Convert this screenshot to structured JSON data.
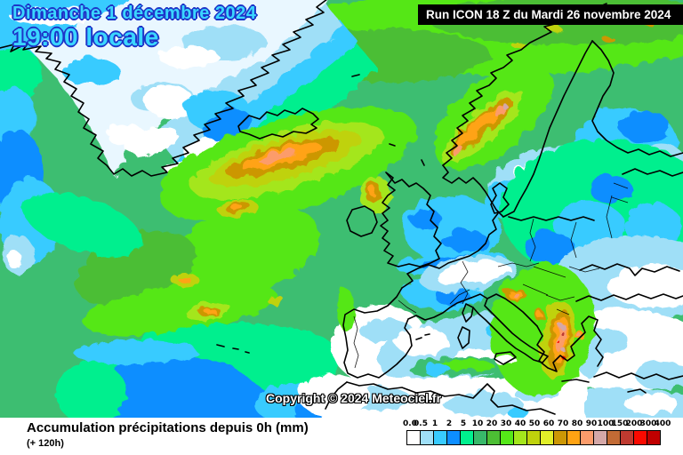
{
  "header": {
    "date": "Dimanche 1 décembre 2024",
    "time": "19:00 locale",
    "run": "Run ICON 18 Z du Mardi 26 novembre 2024"
  },
  "map": {
    "copyright": "Copyright © 2024 Meteociel.fr",
    "region": "Europe / North Atlantic"
  },
  "legend": {
    "title": "Accumulation précipitations depuis 0h (mm)",
    "subtitle": "(+ 120h)",
    "unit": "mm",
    "scale": [
      {
        "value": "0.0",
        "color": "#FFFFFF"
      },
      {
        "value": "0.5",
        "color": "#9FDFF7"
      },
      {
        "value": "1",
        "color": "#38CBFF"
      },
      {
        "value": "2",
        "color": "#0D8EFF"
      },
      {
        "value": "5",
        "color": "#00EF8E"
      },
      {
        "value": "10",
        "color": "#38B96A"
      },
      {
        "value": "20",
        "color": "#4CBE34"
      },
      {
        "value": "30",
        "color": "#55E718"
      },
      {
        "value": "40",
        "color": "#A4E61C"
      },
      {
        "value": "50",
        "color": "#BFD20C"
      },
      {
        "value": "60",
        "color": "#E1EF29"
      },
      {
        "value": "70",
        "color": "#CC9705"
      },
      {
        "value": "80",
        "color": "#FFA313"
      },
      {
        "value": "90",
        "color": "#FC9C6B"
      },
      {
        "value": "100",
        "color": "#D4A8A8"
      },
      {
        "value": "150",
        "color": "#C26B35"
      },
      {
        "value": "200",
        "color": "#BE3A30"
      },
      {
        "value": "300",
        "color": "#FA0A00"
      },
      {
        "value": "400",
        "color": "#C00000"
      }
    ]
  },
  "colors": {
    "date_text": "#3BD6FF",
    "date_outline": "#1D35C8",
    "run_bg": "#000000",
    "run_text": "#FFFFFF",
    "sea_base_green": "#3DBE71"
  }
}
